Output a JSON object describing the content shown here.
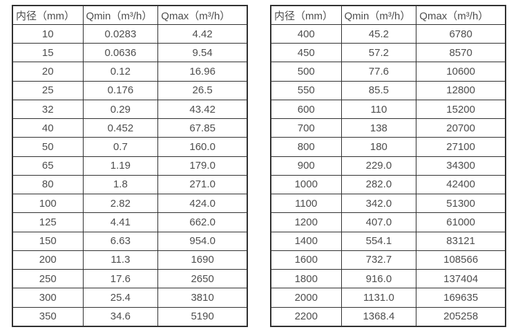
{
  "colors": {
    "background": "#ffffff",
    "border": "#2f2f2f",
    "text": "#4d4d4d"
  },
  "tables": [
    {
      "title": "small-diameter-flow-range",
      "headers": [
        "内径（mm）",
        "Qmin（m³/h）",
        "Qmax（m³/h）"
      ],
      "rows": [
        [
          "10",
          "0.0283",
          "4.42"
        ],
        [
          "15",
          "0.0636",
          "9.54"
        ],
        [
          "20",
          "0.12",
          "16.96"
        ],
        [
          "25",
          "0.176",
          "26.5"
        ],
        [
          "32",
          "0.29",
          "43.42"
        ],
        [
          "40",
          "0.452",
          "67.85"
        ],
        [
          "50",
          "0.7",
          "160.0"
        ],
        [
          "65",
          "1.19",
          "179.0"
        ],
        [
          "80",
          "1.8",
          "271.0"
        ],
        [
          "100",
          "2.82",
          "424.0"
        ],
        [
          "125",
          "4.41",
          "662.0"
        ],
        [
          "150",
          "6.63",
          "954.0"
        ],
        [
          "200",
          "11.3",
          "1690"
        ],
        [
          "250",
          "17.6",
          "2650"
        ],
        [
          "300",
          "25.4",
          "3810"
        ],
        [
          "350",
          "34.6",
          "5190"
        ]
      ]
    },
    {
      "title": "large-diameter-flow-range",
      "headers": [
        "内径（mm）",
        "Qmin（m³/h）",
        "Qmax（m³/h）"
      ],
      "rows": [
        [
          "400",
          "45.2",
          "6780"
        ],
        [
          "450",
          "57.2",
          "8570"
        ],
        [
          "500",
          "77.6",
          "10600"
        ],
        [
          "550",
          "85.5",
          "12800"
        ],
        [
          "600",
          "110",
          "15200"
        ],
        [
          "700",
          "138",
          "20700"
        ],
        [
          "800",
          "180",
          "27100"
        ],
        [
          "900",
          "229.0",
          "34300"
        ],
        [
          "1000",
          "282.0",
          "42400"
        ],
        [
          "1100",
          "342.0",
          "51300"
        ],
        [
          "1200",
          "407.0",
          "61000"
        ],
        [
          "1400",
          "554.1",
          "83121"
        ],
        [
          "1600",
          "732.7",
          "108566"
        ],
        [
          "1800",
          "916.0",
          "137404"
        ],
        [
          "2000",
          "1131.0",
          "169635"
        ],
        [
          "2200",
          "1368.4",
          "205258"
        ]
      ]
    }
  ]
}
